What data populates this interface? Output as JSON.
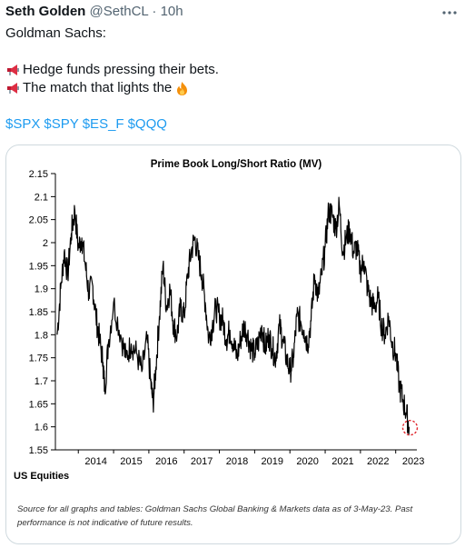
{
  "tweet": {
    "author_name": "Seth Golden",
    "handle": "@SethCL",
    "separator": "·",
    "time": "10h",
    "lines": [
      "Goldman Sachs:",
      "Hedge funds pressing their bets.",
      "The match that lights the"
    ],
    "cashtags": [
      "$SPX",
      "$SPY",
      "$ES_F",
      "$QQQ"
    ],
    "icons": {
      "more": "more-horizontal-icon",
      "megaphone": "megaphone-icon",
      "fire": "fire-emoji-icon"
    },
    "colors": {
      "link": "#1d9bf0",
      "text": "#0f1419",
      "secondary": "#536471",
      "border": "#cfd9de"
    }
  },
  "chart_data": {
    "type": "line",
    "title": "Prime Book Long/Short Ratio (MV)",
    "sublabel": "US Equities",
    "source": "Source for all graphs and tables: Goldman Sachs Global Banking & Markets data as of 3-May-23. Past",
    "source_line2": "performance is not indicative of future results.",
    "ylim": [
      1.55,
      2.15
    ],
    "yticks": [
      "2.15",
      "2.1",
      "2.05",
      "2",
      "1.95",
      "1.9",
      "1.85",
      "1.8",
      "1.75",
      "1.7",
      "1.65",
      "1.6",
      "1.55"
    ],
    "xticks": [
      "2014",
      "2015",
      "2016",
      "2017",
      "2018",
      "2019",
      "2020",
      "2021",
      "2022",
      "2023"
    ],
    "xlim": [
      2013.35,
      2023.6
    ],
    "grid": false,
    "annotation": "red dashed circle at latest value",
    "series": [
      {
        "color": "#000000",
        "x": [
          2013.4,
          2013.5,
          2013.6,
          2013.7,
          2013.8,
          2013.9,
          2014.0,
          2014.1,
          2014.2,
          2014.3,
          2014.4,
          2014.5,
          2014.6,
          2014.7,
          2014.75,
          2014.85,
          2015.0,
          2015.2,
          2015.35,
          2015.5,
          2015.65,
          2015.8,
          2015.95,
          2016.05,
          2016.12,
          2016.2,
          2016.3,
          2016.4,
          2016.5,
          2016.6,
          2016.7,
          2016.8,
          2016.9,
          2017.0,
          2017.1,
          2017.2,
          2017.3,
          2017.4,
          2017.5,
          2017.6,
          2017.7,
          2017.8,
          2017.9,
          2018.0,
          2018.1,
          2018.2,
          2018.3,
          2018.4,
          2018.5,
          2018.6,
          2018.7,
          2018.8,
          2018.9,
          2019.0,
          2019.1,
          2019.2,
          2019.3,
          2019.4,
          2019.5,
          2019.6,
          2019.7,
          2019.8,
          2019.9,
          2020.0,
          2020.1,
          2020.2,
          2020.3,
          2020.4,
          2020.5,
          2020.6,
          2020.7,
          2020.8,
          2020.9,
          2021.0,
          2021.1,
          2021.2,
          2021.3,
          2021.4,
          2021.5,
          2021.6,
          2021.7,
          2021.8,
          2021.9,
          2022.0,
          2022.1,
          2022.2,
          2022.3,
          2022.4,
          2022.5,
          2022.6,
          2022.7,
          2022.8,
          2022.9,
          2023.0,
          2023.1,
          2023.2,
          2023.3,
          2023.38
        ],
        "y": [
          1.8,
          1.9,
          1.98,
          1.93,
          2.02,
          2.07,
          1.99,
          2.01,
          1.95,
          1.89,
          1.91,
          1.84,
          1.79,
          1.74,
          1.68,
          1.78,
          1.87,
          1.8,
          1.75,
          1.78,
          1.76,
          1.72,
          1.79,
          1.7,
          1.65,
          1.73,
          1.84,
          1.95,
          1.86,
          1.9,
          1.82,
          1.8,
          1.86,
          1.84,
          1.93,
          1.98,
          2.01,
          1.97,
          1.93,
          1.87,
          1.79,
          1.82,
          1.86,
          1.84,
          1.83,
          1.79,
          1.81,
          1.78,
          1.75,
          1.79,
          1.82,
          1.8,
          1.77,
          1.76,
          1.78,
          1.82,
          1.77,
          1.8,
          1.77,
          1.75,
          1.82,
          1.79,
          1.75,
          1.72,
          1.75,
          1.84,
          1.83,
          1.81,
          1.78,
          1.83,
          1.93,
          1.88,
          1.93,
          1.99,
          2.07,
          2.06,
          2.03,
          2.08,
          1.98,
          2.01,
          2.03,
          1.98,
          1.99,
          1.94,
          1.96,
          1.9,
          1.87,
          1.86,
          1.88,
          1.82,
          1.8,
          1.84,
          1.78,
          1.76,
          1.69,
          1.66,
          1.63,
          1.6
        ]
      }
    ]
  }
}
